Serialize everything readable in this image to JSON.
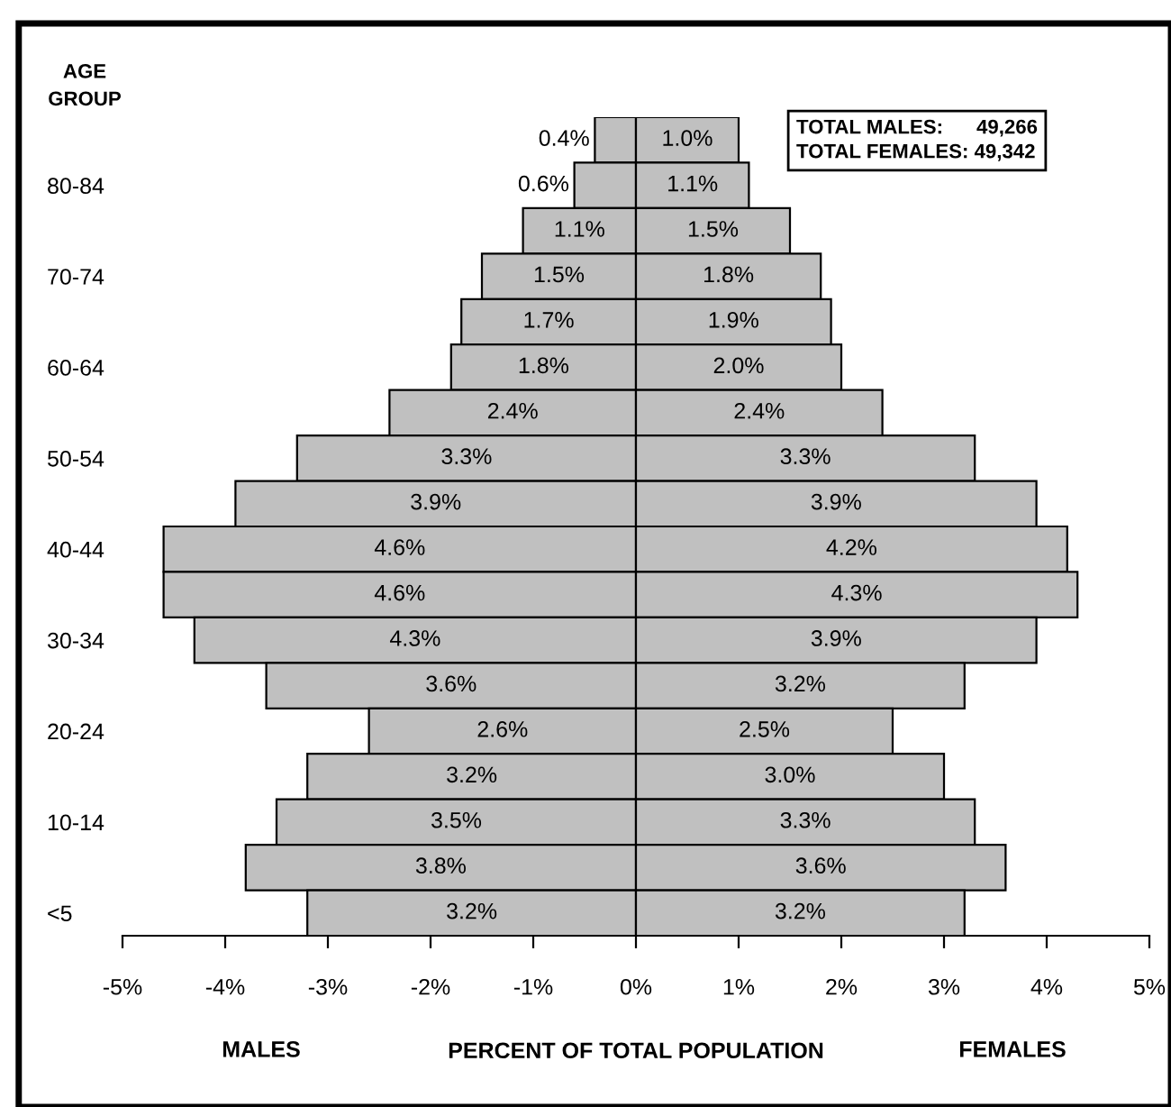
{
  "chart_data": {
    "type": "bar",
    "orientation": "horizontal",
    "ylabel": "AGE\nGROUP",
    "xlabel": "PERCENT OF TOTAL POPULATION",
    "categories": [
      null,
      "80-84",
      null,
      "70-74",
      null,
      "60-64",
      null,
      "50-54",
      null,
      "40-44",
      null,
      "30-34",
      null,
      "20-24",
      null,
      "10-14",
      null,
      "<5"
    ],
    "series": [
      {
        "color": "#c0c0c0",
        "values": [
          0.4,
          0.6,
          1.1,
          1.5,
          1.7,
          1.8,
          2.4,
          3.3,
          3.9,
          4.6,
          4.6,
          4.3,
          3.6,
          2.6,
          3.2,
          3.5,
          3.8,
          3.2
        ],
        "base": [
          -0.4,
          -0.6,
          -1.1,
          -1.5,
          -1.7,
          -1.8,
          -2.4,
          -3.3,
          -3.9,
          -4.6,
          -4.6,
          -4.3,
          -3.6,
          -2.6,
          -3.2,
          -3.5,
          -3.8,
          -3.2
        ],
        "value_labels": [
          "0.4%",
          "0.6%",
          "1.1%",
          "1.5%",
          "1.7%",
          "1.8%",
          "2.4%",
          "3.3%",
          "3.9%",
          "4.6%",
          "4.6%",
          "4.3%",
          "3.6%",
          "2.6%",
          "3.2%",
          "3.5%",
          "3.8%",
          "3.2%"
        ]
      },
      {
        "color": "#c0c0c0",
        "values": [
          1.0,
          1.1,
          1.5,
          1.8,
          1.9,
          2.0,
          2.4,
          3.3,
          3.9,
          4.2,
          4.3,
          3.9,
          3.2,
          2.5,
          3.0,
          3.3,
          3.6,
          3.2
        ],
        "value_labels": [
          "1.0%",
          "1.1%",
          "1.5%",
          "1.8%",
          "1.9%",
          "2.0%",
          "2.4%",
          "3.3%",
          "3.9%",
          "4.2%",
          "4.3%",
          "3.9%",
          "3.2%",
          "2.5%",
          "3.0%",
          "3.3%",
          "3.6%",
          "3.2%"
        ]
      }
    ],
    "xlim": [
      -5,
      5
    ],
    "xticks": [
      {
        "value": -5,
        "label": "-5%"
      },
      {
        "value": -4,
        "label": "-4%"
      },
      {
        "value": -3,
        "label": "-3%"
      },
      {
        "value": -2,
        "label": "-2%"
      },
      {
        "value": -1,
        "label": "-1%"
      },
      {
        "value": 0,
        "label": "0%"
      },
      {
        "value": 1,
        "label": "1%"
      },
      {
        "value": 2,
        "label": "2%"
      },
      {
        "value": 3,
        "label": "3%"
      },
      {
        "value": 4,
        "label": "4%"
      },
      {
        "value": 5,
        "label": "5%"
      }
    ],
    "grid": false,
    "legend": false,
    "annotations": [
      "MALES",
      "FEMALES",
      "TOTAL MALES:      49,266\nTOTAL FEMALES: 49,342"
    ]
  }
}
